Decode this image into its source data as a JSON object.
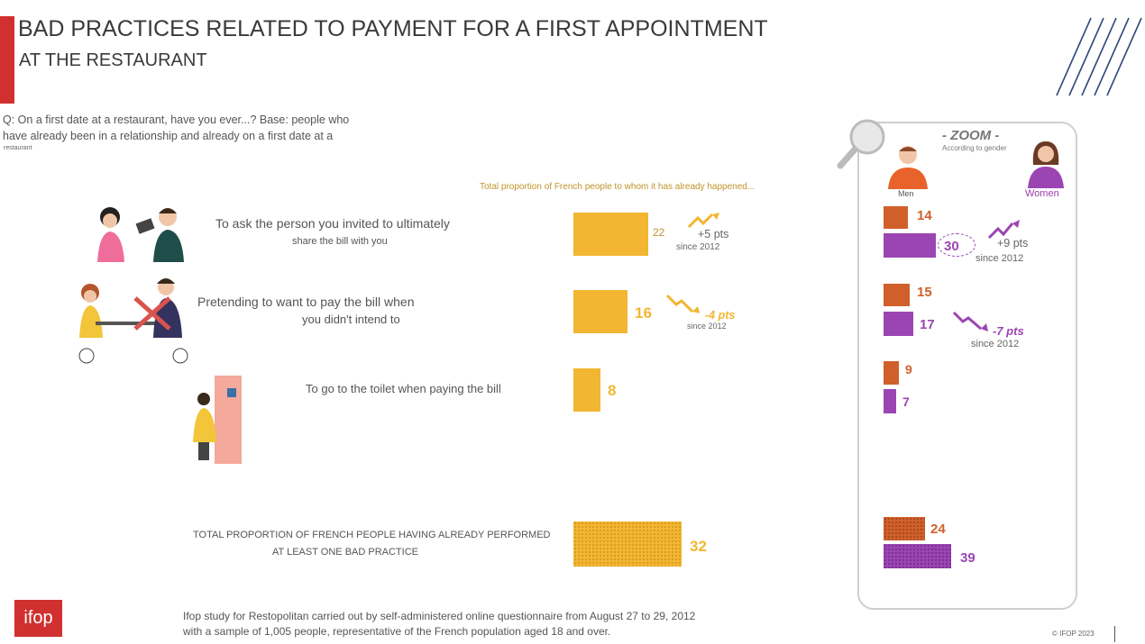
{
  "header": {
    "title": "BAD PRACTICES RELATED TO PAYMENT FOR A FIRST APPOINTMENT",
    "subtitle": "AT THE RESTAURANT"
  },
  "question": {
    "text": "Q: On a first date at a restaurant, have you ever...? Base: people who have already been in a relationship and already on a first date at a",
    "tail": "restaurant"
  },
  "total_caption": "Total proportion of French people to whom it has already happened...",
  "items": [
    {
      "label_line1": "To ask the person you invited to ultimately",
      "label_line2": "share the bill with you",
      "value_text": "22",
      "trend_value": "+5 pts",
      "trend_since": "since 2012"
    },
    {
      "label_line1": "Pretending to want to pay the bill when",
      "label_line2": "you didn't intend to",
      "value_text": "16",
      "trend_value": "-4 pts",
      "trend_since": "since 2012"
    },
    {
      "label_line1": "To go to the toilet when paying the bill",
      "value_text": "8"
    }
  ],
  "total_row": {
    "label_line1": "TOTAL PROPORTION OF FRENCH PEOPLE HAVING ALREADY PERFORMED",
    "label_line2": "AT LEAST ONE BAD PRACTICE",
    "value_text": "32"
  },
  "zoom": {
    "title": "- ZOOM -",
    "subtitle": "According to gender",
    "men_label": "Men",
    "women_label": "Women",
    "values": [
      {
        "men": "14",
        "women": "30",
        "trend_value": "+9 pts",
        "trend_since": "since 2012"
      },
      {
        "men": "15",
        "women": "17",
        "trend_value": "-7 pts",
        "trend_since": "since 2012"
      },
      {
        "men": "9",
        "women": "7"
      },
      {
        "men": "24",
        "women": "39"
      }
    ]
  },
  "footer": {
    "logo": "ifop",
    "note_line1": "Ifop study for Restopolitan carried out by self-administered online questionnaire from August 27 to 29, 2012",
    "note_line2": "with a sample of 1,005 people, representative of the French population aged 18 and over.",
    "copyright": "© IFOP 2023"
  },
  "colors": {
    "accent_red": "#d0302f",
    "total_bar": "#f2b632",
    "men": "#d0602a",
    "women": "#9b45b3"
  },
  "chart_data": [
    {
      "type": "bar",
      "categories": [
        "To ask the person you invited to ultimately share the bill with you",
        "Pretending to want to pay the bill when you didn't intend to",
        "To go to the toilet when paying the bill",
        "TOTAL PROPORTION OF FRENCH PEOPLE HAVING ALREADY PERFORMED AT LEAST ONE BAD PRACTICE"
      ],
      "values": [
        22,
        16,
        8,
        32
      ],
      "title": "Total proportion of French people to whom it has already happened...",
      "orientation": "horizontal"
    },
    {
      "type": "bar",
      "categories": [
        "To ask the person you invited to ultimately share the bill with you",
        "Pretending to want to pay the bill when you didn't intend to",
        "To go to the toilet when paying the bill",
        "TOTAL PROPORTION OF FRENCH PEOPLE HAVING ALREADY PERFORMED AT LEAST ONE BAD PRACTICE"
      ],
      "series": [
        {
          "name": "Men",
          "values": [
            14,
            15,
            9,
            24
          ]
        },
        {
          "name": "Women",
          "values": [
            30,
            17,
            7,
            39
          ]
        }
      ],
      "title": "- ZOOM -",
      "orientation": "horizontal"
    }
  ]
}
